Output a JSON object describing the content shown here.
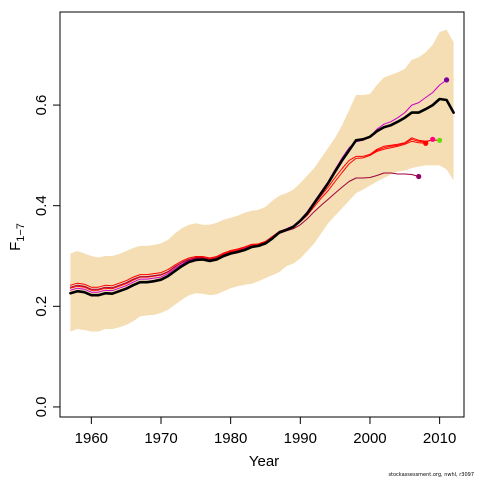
{
  "chart_data": {
    "type": "line",
    "xlabel": "Year",
    "ylabel": "F",
    "ylabel_bar": "‾",
    "ylabel_subscript": "1−7",
    "xlim": [
      1955.5,
      2013.5
    ],
    "ylim": [
      -0.02,
      0.785
    ],
    "x_ticks": [
      1960,
      1970,
      1980,
      1990,
      2000,
      2010
    ],
    "x_tick_labels": [
      "1960",
      "1970",
      "1980",
      "1990",
      "2000",
      "2010"
    ],
    "y_ticks": [
      0.0,
      0.2,
      0.4,
      0.6
    ],
    "y_tick_labels": [
      "0.0",
      "0.2",
      "0.4",
      "0.6"
    ],
    "grid": false,
    "footer": "stockassessment.org, nwhl, r3097",
    "colors": {
      "band": "#f5deb3",
      "main": "#000000",
      "retro_red": "#ff0000",
      "retro_purple": "#a0003c",
      "retro_magenta": "#cc00cc"
    },
    "band": {
      "x": [
        1957,
        1958,
        1959,
        1960,
        1961,
        1962,
        1963,
        1964,
        1965,
        1966,
        1967,
        1968,
        1969,
        1970,
        1971,
        1972,
        1973,
        1974,
        1975,
        1976,
        1977,
        1978,
        1979,
        1980,
        1981,
        1982,
        1983,
        1984,
        1985,
        1986,
        1987,
        1988,
        1989,
        1990,
        1991,
        1992,
        1993,
        1994,
        1995,
        1996,
        1997,
        1998,
        1999,
        2000,
        2001,
        2002,
        2003,
        2004,
        2005,
        2006,
        2007,
        2008,
        2009,
        2010,
        2011,
        2012
      ],
      "upper": [
        0.305,
        0.31,
        0.305,
        0.3,
        0.297,
        0.3,
        0.3,
        0.304,
        0.31,
        0.316,
        0.32,
        0.32,
        0.322,
        0.325,
        0.332,
        0.345,
        0.355,
        0.362,
        0.365,
        0.362,
        0.362,
        0.366,
        0.372,
        0.376,
        0.38,
        0.386,
        0.39,
        0.392,
        0.398,
        0.41,
        0.42,
        0.425,
        0.432,
        0.445,
        0.46,
        0.475,
        0.495,
        0.515,
        0.535,
        0.56,
        0.59,
        0.62,
        0.62,
        0.622,
        0.64,
        0.655,
        0.66,
        0.665,
        0.672,
        0.69,
        0.695,
        0.705,
        0.72,
        0.745,
        0.75,
        0.725
      ],
      "lower": [
        0.15,
        0.155,
        0.153,
        0.15,
        0.15,
        0.155,
        0.155,
        0.158,
        0.163,
        0.17,
        0.18,
        0.182,
        0.183,
        0.187,
        0.193,
        0.203,
        0.213,
        0.222,
        0.226,
        0.225,
        0.222,
        0.224,
        0.23,
        0.236,
        0.24,
        0.243,
        0.245,
        0.25,
        0.256,
        0.262,
        0.268,
        0.28,
        0.285,
        0.295,
        0.31,
        0.325,
        0.345,
        0.365,
        0.38,
        0.395,
        0.41,
        0.425,
        0.432,
        0.44,
        0.448,
        0.455,
        0.462,
        0.468,
        0.47,
        0.475,
        0.478,
        0.48,
        0.48,
        0.48,
        0.472,
        0.45
      ]
    },
    "series": [
      {
        "role": "estimate",
        "color": "#000000",
        "width": 2.6,
        "x": [
          1957,
          1958,
          1959,
          1960,
          1961,
          1962,
          1963,
          1964,
          1965,
          1966,
          1967,
          1968,
          1969,
          1970,
          1971,
          1972,
          1973,
          1974,
          1975,
          1976,
          1977,
          1978,
          1979,
          1980,
          1981,
          1982,
          1983,
          1984,
          1985,
          1986,
          1987,
          1988,
          1989,
          1990,
          1991,
          1992,
          1993,
          1994,
          1995,
          1996,
          1997,
          1998,
          1999,
          2000,
          2001,
          2002,
          2003,
          2004,
          2005,
          2006,
          2007,
          2008,
          2009,
          2010,
          2011,
          2012
        ],
        "y": [
          0.226,
          0.23,
          0.228,
          0.222,
          0.222,
          0.226,
          0.225,
          0.23,
          0.235,
          0.242,
          0.248,
          0.248,
          0.25,
          0.253,
          0.26,
          0.27,
          0.28,
          0.288,
          0.292,
          0.293,
          0.29,
          0.293,
          0.3,
          0.305,
          0.308,
          0.312,
          0.318,
          0.32,
          0.325,
          0.335,
          0.347,
          0.352,
          0.358,
          0.37,
          0.385,
          0.405,
          0.425,
          0.445,
          0.468,
          0.49,
          0.51,
          0.53,
          0.532,
          0.537,
          0.548,
          0.556,
          0.56,
          0.567,
          0.575,
          0.585,
          0.585,
          0.592,
          0.6,
          0.612,
          0.61,
          0.585
        ],
        "end_dot": false
      },
      {
        "role": "retro-2011",
        "color": "#cc00cc",
        "width": 1.0,
        "x": [
          1957,
          1958,
          1959,
          1960,
          1961,
          1962,
          1963,
          1964,
          1965,
          1966,
          1967,
          1968,
          1969,
          1970,
          1971,
          1972,
          1973,
          1974,
          1975,
          1976,
          1977,
          1978,
          1979,
          1980,
          1981,
          1982,
          1983,
          1984,
          1985,
          1986,
          1987,
          1988,
          1989,
          1990,
          1991,
          1992,
          1993,
          1994,
          1995,
          1996,
          1997,
          1998,
          1999,
          2000,
          2001,
          2002,
          2003,
          2004,
          2005,
          2006,
          2007,
          2008,
          2009,
          2010,
          2011
        ],
        "y": [
          0.232,
          0.236,
          0.234,
          0.228,
          0.228,
          0.232,
          0.231,
          0.236,
          0.241,
          0.248,
          0.254,
          0.254,
          0.256,
          0.258,
          0.265,
          0.275,
          0.284,
          0.291,
          0.295,
          0.295,
          0.292,
          0.295,
          0.302,
          0.307,
          0.31,
          0.315,
          0.32,
          0.322,
          0.327,
          0.337,
          0.349,
          0.354,
          0.36,
          0.372,
          0.388,
          0.408,
          0.428,
          0.448,
          0.472,
          0.495,
          0.515,
          0.527,
          0.53,
          0.537,
          0.552,
          0.562,
          0.567,
          0.575,
          0.585,
          0.6,
          0.605,
          0.615,
          0.625,
          0.64,
          0.65
        ],
        "end_dot": true,
        "dot_color": "#7a00a0"
      },
      {
        "role": "retro-2010",
        "color": "#ff0000",
        "width": 1.0,
        "x": [
          1957,
          1958,
          1959,
          1960,
          1961,
          1962,
          1963,
          1964,
          1965,
          1966,
          1967,
          1968,
          1969,
          1970,
          1971,
          1972,
          1973,
          1974,
          1975,
          1976,
          1977,
          1978,
          1979,
          1980,
          1981,
          1982,
          1983,
          1984,
          1985,
          1986,
          1987,
          1988,
          1989,
          1990,
          1991,
          1992,
          1993,
          1994,
          1995,
          1996,
          1997,
          1998,
          1999,
          2000,
          2001,
          2002,
          2003,
          2004,
          2005,
          2006,
          2007,
          2008,
          2009,
          2010
        ],
        "y": [
          0.236,
          0.24,
          0.238,
          0.232,
          0.232,
          0.236,
          0.235,
          0.24,
          0.245,
          0.252,
          0.258,
          0.258,
          0.26,
          0.262,
          0.268,
          0.278,
          0.287,
          0.293,
          0.297,
          0.297,
          0.294,
          0.297,
          0.304,
          0.309,
          0.312,
          0.317,
          0.322,
          0.323,
          0.328,
          0.338,
          0.349,
          0.353,
          0.359,
          0.37,
          0.384,
          0.402,
          0.42,
          0.437,
          0.456,
          0.474,
          0.49,
          0.498,
          0.498,
          0.502,
          0.512,
          0.518,
          0.52,
          0.522,
          0.525,
          0.535,
          0.53,
          0.528,
          0.53,
          0.53
        ],
        "end_dot": true,
        "dot_color": "#66dd00"
      },
      {
        "role": "retro-2009",
        "color": "#ff0000",
        "width": 1.0,
        "x": [
          1957,
          1958,
          1959,
          1960,
          1961,
          1962,
          1963,
          1964,
          1965,
          1966,
          1967,
          1968,
          1969,
          1970,
          1971,
          1972,
          1973,
          1974,
          1975,
          1976,
          1977,
          1978,
          1979,
          1980,
          1981,
          1982,
          1983,
          1984,
          1985,
          1986,
          1987,
          1988,
          1989,
          1990,
          1991,
          1992,
          1993,
          1994,
          1995,
          1996,
          1997,
          1998,
          1999,
          2000,
          2001,
          2002,
          2003,
          2004,
          2005,
          2006,
          2007,
          2008,
          2009
        ],
        "y": [
          0.242,
          0.246,
          0.244,
          0.238,
          0.238,
          0.242,
          0.241,
          0.246,
          0.251,
          0.258,
          0.263,
          0.263,
          0.265,
          0.267,
          0.273,
          0.282,
          0.29,
          0.296,
          0.299,
          0.299,
          0.296,
          0.299,
          0.306,
          0.311,
          0.314,
          0.318,
          0.323,
          0.324,
          0.329,
          0.339,
          0.349,
          0.353,
          0.358,
          0.368,
          0.381,
          0.398,
          0.415,
          0.43,
          0.448,
          0.466,
          0.483,
          0.494,
          0.495,
          0.5,
          0.51,
          0.515,
          0.518,
          0.52,
          0.524,
          0.532,
          0.528,
          0.526,
          0.532
        ],
        "end_dot": true,
        "dot_color": "#ff007f"
      },
      {
        "role": "retro-2008",
        "color": "#ff0000",
        "width": 1.0,
        "x": [
          2000,
          2001,
          2002,
          2003,
          2004,
          2005,
          2006,
          2007,
          2008
        ],
        "y": [
          0.5,
          0.508,
          0.512,
          0.515,
          0.518,
          0.522,
          0.528,
          0.525,
          0.524
        ],
        "end_dot": true,
        "dot_color": "#ff0000"
      },
      {
        "role": "retro-2007",
        "color": "#a0003c",
        "width": 1.0,
        "x": [
          1957,
          1958,
          1959,
          1960,
          1961,
          1962,
          1963,
          1964,
          1965,
          1966,
          1967,
          1968,
          1969,
          1970,
          1971,
          1972,
          1973,
          1974,
          1975,
          1976,
          1977,
          1978,
          1979,
          1980,
          1981,
          1982,
          1983,
          1984,
          1985,
          1986,
          1987,
          1988,
          1989,
          1990,
          1991,
          1992,
          1993,
          1994,
          1995,
          1996,
          1997,
          1998,
          1999,
          2000,
          2001,
          2002,
          2003,
          2004,
          2005,
          2006,
          2007
        ],
        "y": [
          0.238,
          0.242,
          0.24,
          0.234,
          0.234,
          0.238,
          0.237,
          0.242,
          0.247,
          0.254,
          0.259,
          0.259,
          0.261,
          0.263,
          0.269,
          0.279,
          0.287,
          0.293,
          0.296,
          0.296,
          0.293,
          0.296,
          0.302,
          0.307,
          0.31,
          0.314,
          0.318,
          0.32,
          0.325,
          0.334,
          0.345,
          0.35,
          0.354,
          0.362,
          0.374,
          0.388,
          0.401,
          0.413,
          0.425,
          0.437,
          0.448,
          0.455,
          0.455,
          0.456,
          0.46,
          0.465,
          0.465,
          0.463,
          0.463,
          0.462,
          0.458
        ],
        "end_dot": true,
        "dot_color": "#990066"
      }
    ]
  }
}
